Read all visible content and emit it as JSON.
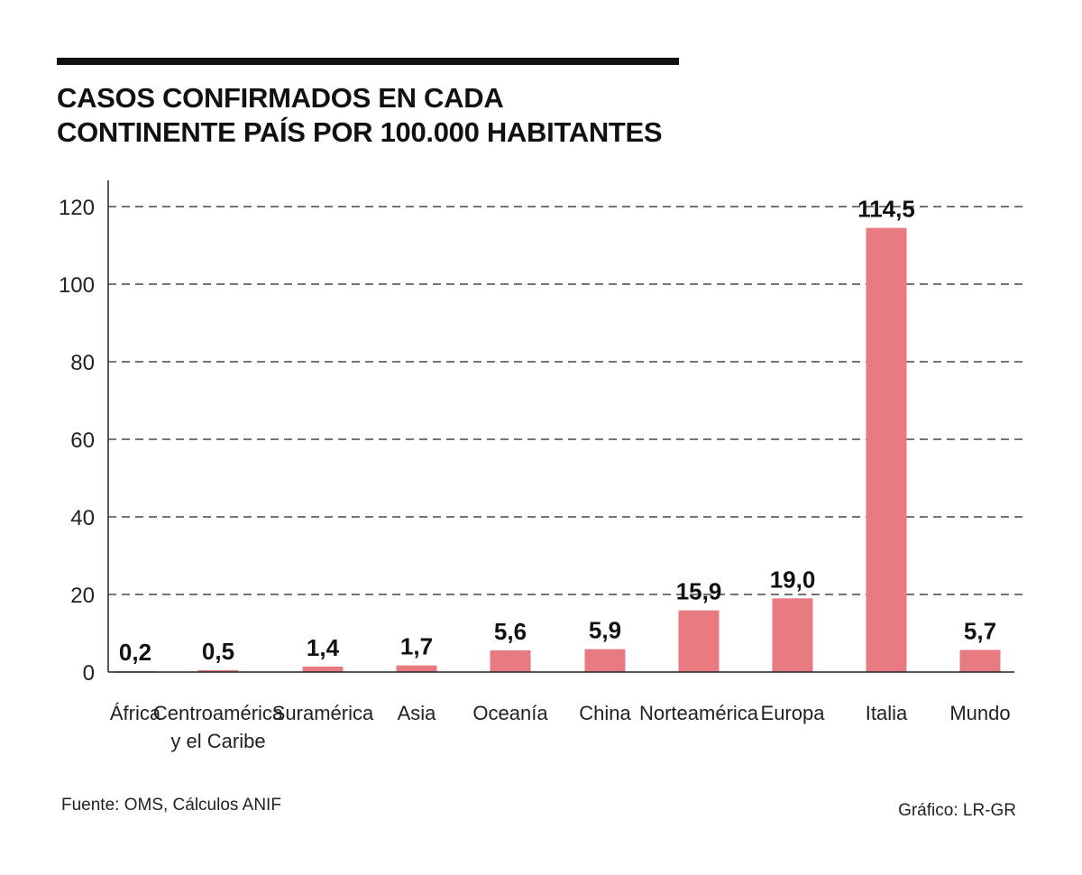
{
  "title_line1": "CASOS CONFIRMADOS EN CADA",
  "title_line2": "CONTINENTE PAÍS POR 100.000 HABITANTES",
  "source": "Fuente: OMS, Cálculos ANIF",
  "credit": "Gráfico: LR-GR",
  "colors": {
    "bar": "#e87a82",
    "text": "#111111"
  },
  "chart_data": {
    "type": "bar",
    "title": "CASOS CONFIRMADOS EN CADA CONTINENTE PAÍS POR 100.000 HABITANTES",
    "categories": [
      [
        "África"
      ],
      [
        "Centroamérica",
        "y el Caribe"
      ],
      [
        "Suramérica"
      ],
      [
        "Asia"
      ],
      [
        "Oceanía"
      ],
      [
        "China"
      ],
      [
        "Norteamérica"
      ],
      [
        "Europa"
      ],
      [
        "Italia"
      ],
      [
        "Mundo"
      ]
    ],
    "values": [
      0.2,
      0.5,
      1.4,
      1.7,
      5.6,
      5.9,
      15.9,
      19.0,
      114.5,
      5.7
    ],
    "value_labels": [
      "0,2",
      "0,5",
      "1,4",
      "1,7",
      "5,6",
      "5,9",
      "15,9",
      "19,0",
      "114,5",
      "5,7"
    ],
    "yticks": [
      0,
      20,
      40,
      60,
      80,
      100,
      120
    ],
    "ylim": [
      0,
      120
    ],
    "xlabel": "",
    "ylabel": "",
    "grid": "dashed horizontal"
  }
}
